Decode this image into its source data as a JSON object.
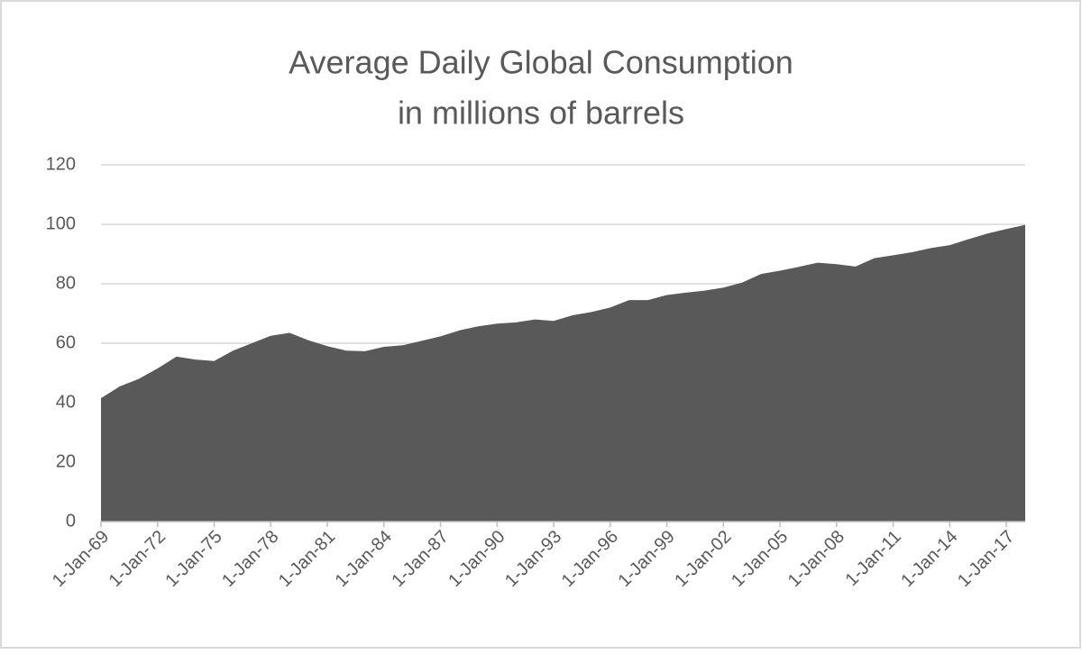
{
  "chart_data": {
    "type": "area",
    "title": [
      "Average Daily Global Consumption",
      "in millions of barrels"
    ],
    "categories": [
      "1-Jan-69",
      null,
      null,
      "1-Jan-72",
      null,
      null,
      "1-Jan-75",
      null,
      null,
      "1-Jan-78",
      null,
      null,
      "1-Jan-81",
      null,
      null,
      "1-Jan-84",
      null,
      null,
      "1-Jan-87",
      null,
      null,
      "1-Jan-90",
      null,
      null,
      "1-Jan-93",
      null,
      null,
      "1-Jan-96",
      null,
      null,
      "1-Jan-99",
      null,
      null,
      "1-Jan-02",
      null,
      null,
      "1-Jan-05",
      null,
      null,
      "1-Jan-08",
      null,
      null,
      "1-Jan-11",
      null,
      null,
      "1-Jan-14",
      null,
      null,
      "1-Jan-17",
      null
    ],
    "values": [
      41.5,
      45.5,
      48,
      51.5,
      55.5,
      54.5,
      54,
      57.5,
      60,
      62.5,
      63.5,
      61,
      59,
      57.5,
      57.3,
      58.8,
      59.3,
      60.8,
      62.3,
      64.3,
      65.7,
      66.6,
      67,
      68,
      67.5,
      69.4,
      70.5,
      72,
      74.5,
      74.5,
      76.2,
      77,
      77.7,
      78.7,
      80.4,
      83.3,
      84.4,
      85.7,
      87.1,
      86.6,
      85.8,
      88.6,
      89.6,
      90.6,
      92,
      93,
      95,
      96.9,
      98.4,
      99.8
    ],
    "color": "#595959",
    "ylim": [
      0,
      120
    ],
    "yticks": [
      0,
      20,
      40,
      60,
      80,
      100,
      120
    ],
    "grid": true
  }
}
